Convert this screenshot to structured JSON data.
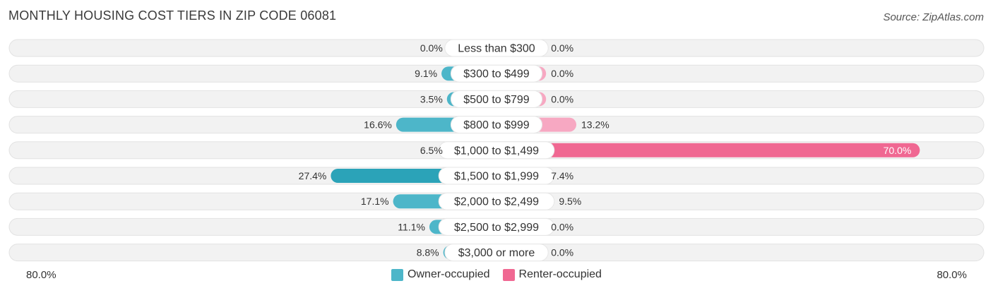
{
  "header": {
    "title": "MONTHLY HOUSING COST TIERS IN ZIP CODE 06081",
    "source": "Source: ZipAtlas.com"
  },
  "axis": {
    "left_label": "80.0%",
    "right_label": "80.0%"
  },
  "legend": {
    "owner_label": "Owner-occupied",
    "renter_label": "Renter-occupied"
  },
  "colors": {
    "owner": "#4db6c9",
    "owner_strong": "#2ba3b8",
    "renter": "#f7a8c2",
    "renter_strong": "#f06892",
    "track": "#f2f2f2"
  },
  "chart_data": {
    "type": "bar",
    "orientation": "horizontal-diverging",
    "title": "MONTHLY HOUSING COST TIERS IN ZIP CODE 06081",
    "categories": [
      "Less than $300",
      "$300 to $499",
      "$500 to $799",
      "$800 to $999",
      "$1,000 to $1,499",
      "$1,500 to $1,999",
      "$2,000 to $2,499",
      "$2,500 to $2,999",
      "$3,000 or more"
    ],
    "series": [
      {
        "name": "Owner-occupied",
        "values": [
          0.0,
          9.1,
          3.5,
          16.6,
          6.5,
          27.4,
          17.1,
          11.1,
          8.8
        ]
      },
      {
        "name": "Renter-occupied",
        "values": [
          0.0,
          0.0,
          0.0,
          13.2,
          70.0,
          7.4,
          9.5,
          0.0,
          0.0
        ]
      }
    ],
    "value_labels": {
      "owner": [
        "0.0%",
        "9.1%",
        "3.5%",
        "16.6%",
        "6.5%",
        "27.4%",
        "17.1%",
        "11.1%",
        "8.8%"
      ],
      "renter": [
        "0.0%",
        "0.0%",
        "0.0%",
        "13.2%",
        "70.0%",
        "7.4%",
        "9.5%",
        "0.0%",
        "0.0%"
      ]
    },
    "xlim": [
      -80,
      80
    ],
    "legend_position": "bottom-center",
    "grid": false
  }
}
